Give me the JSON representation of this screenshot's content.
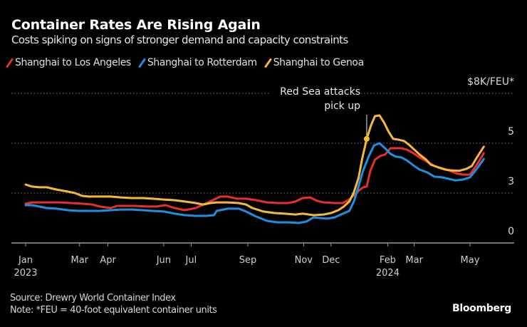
{
  "header": {
    "title": "Container Rates Are Rising Again",
    "subtitle": "Costs spiking on signs of stronger demand and capacity constraints"
  },
  "footer": {
    "source": "Source: Drewry World Container Index",
    "note": "Note: *FEU = 40-foot equivalent container units",
    "brand": "Bloomberg"
  },
  "chart_data": {
    "type": "line",
    "title": "Container Rates Are Rising Again",
    "subtitle": "Costs spiking on signs of stronger demand and capacity constraints",
    "xlabel": "",
    "ylabel": "$8K/FEU*",
    "x_unit": "days since 2023-01-01",
    "x_range": [
      0,
      530
    ],
    "y_ticks": [
      {
        "value": 0,
        "label": "0"
      },
      {
        "value": 3,
        "label": "3"
      },
      {
        "value": 5,
        "label": "5"
      },
      {
        "value": 8,
        "label": "$8K/FEU*"
      }
    ],
    "grid": true,
    "legend_position": "top-left",
    "x_ticks": [
      {
        "day": 0,
        "label": "Jan",
        "year": "2023"
      },
      {
        "day": 59,
        "label": "Mar",
        "year": ""
      },
      {
        "day": 90,
        "label": "Apr",
        "year": ""
      },
      {
        "day": 151,
        "label": "Jun",
        "year": ""
      },
      {
        "day": 181,
        "label": "Jul",
        "year": ""
      },
      {
        "day": 243,
        "label": "Sep",
        "year": ""
      },
      {
        "day": 304,
        "label": "Nov",
        "year": ""
      },
      {
        "day": 334,
        "label": "Dec",
        "year": ""
      },
      {
        "day": 396,
        "label": "Feb",
        "year": "2024"
      },
      {
        "day": 425,
        "label": "Mar",
        "year": ""
      },
      {
        "day": 486,
        "label": "May",
        "year": ""
      }
    ],
    "annotation": {
      "line1": "Red Sea attacks",
      "line2": "pick up",
      "day": 373,
      "series": "Shanghai to Genoa",
      "value": 5.26
    },
    "series": [
      {
        "name": "Shanghai to Los Angeles",
        "color": "#e8302a",
        "x": [
          0,
          7,
          15,
          26,
          38,
          50,
          62,
          73,
          81,
          93,
          100,
          108,
          120,
          132,
          143,
          153,
          163,
          174,
          186,
          198,
          206,
          213,
          221,
          231,
          241,
          252,
          264,
          276,
          287,
          295,
          303,
          311,
          319,
          326,
          338,
          347,
          354,
          359,
          364,
          369,
          373,
          377,
          382,
          388,
          393,
          399,
          405,
          411,
          417,
          424,
          431,
          439,
          447,
          455,
          463,
          470,
          478,
          486,
          494,
          501
        ],
        "values": [
          2.36,
          2.44,
          2.44,
          2.44,
          2.44,
          2.4,
          2.36,
          2.31,
          2.19,
          2.1,
          2.23,
          2.23,
          2.23,
          2.19,
          2.19,
          2.27,
          2.1,
          1.97,
          2.1,
          2.4,
          2.61,
          2.79,
          2.79,
          2.66,
          2.66,
          2.57,
          2.44,
          2.4,
          2.4,
          2.49,
          2.7,
          2.74,
          2.53,
          2.44,
          2.4,
          2.4,
          2.61,
          2.87,
          3.09,
          3.23,
          3.26,
          3.89,
          4.34,
          4.49,
          4.54,
          4.8,
          4.8,
          4.8,
          4.74,
          4.6,
          4.43,
          4.26,
          4.09,
          4.0,
          3.91,
          3.8,
          3.74,
          3.74,
          4.17,
          4.6
        ]
      },
      {
        "name": "Shanghai to Rotterdam",
        "color": "#1f8fe0",
        "x": [
          0,
          7,
          15,
          23,
          34,
          46,
          58,
          69,
          81,
          93,
          104,
          116,
          128,
          139,
          151,
          163,
          174,
          186,
          198,
          206,
          209,
          221,
          233,
          241,
          252,
          264,
          276,
          287,
          299,
          307,
          315,
          322,
          330,
          338,
          347,
          354,
          359,
          364,
          369,
          375,
          381,
          387,
          393,
          399,
          405,
          411,
          417,
          424,
          431,
          439,
          447,
          455,
          463,
          470,
          478,
          486,
          494,
          501
        ],
        "values": [
          2.27,
          2.27,
          2.19,
          2.1,
          2.06,
          1.97,
          1.93,
          1.93,
          1.93,
          1.97,
          2.01,
          2.01,
          1.97,
          1.93,
          1.89,
          1.76,
          1.67,
          1.63,
          1.63,
          1.67,
          1.93,
          2.06,
          2.06,
          1.89,
          1.59,
          1.33,
          1.24,
          1.24,
          1.2,
          1.29,
          1.54,
          1.5,
          1.46,
          1.54,
          1.76,
          1.93,
          2.49,
          3.26,
          3.89,
          4.46,
          4.91,
          5.0,
          4.8,
          4.57,
          4.46,
          4.43,
          4.31,
          4.11,
          3.94,
          3.83,
          3.66,
          3.63,
          3.57,
          3.51,
          3.54,
          3.63,
          4.0,
          4.37
        ]
      },
      {
        "name": "Shanghai to Genoa",
        "color": "#f5b93a",
        "x": [
          0,
          7,
          15,
          23,
          34,
          46,
          54,
          62,
          69,
          81,
          93,
          104,
          116,
          128,
          139,
          151,
          163,
          174,
          186,
          194,
          202,
          209,
          221,
          233,
          241,
          248,
          260,
          272,
          283,
          295,
          303,
          315,
          326,
          334,
          342,
          348,
          354,
          359,
          364,
          368,
          373,
          378,
          382,
          387,
          392,
          397,
          402,
          408,
          414,
          420,
          426,
          431,
          438,
          443,
          451,
          459,
          466,
          474,
          482,
          488,
          494,
          501
        ],
        "values": [
          3.34,
          3.26,
          3.23,
          3.23,
          3.14,
          3.06,
          3.0,
          2.83,
          2.79,
          2.79,
          2.79,
          2.74,
          2.7,
          2.7,
          2.66,
          2.61,
          2.57,
          2.49,
          2.4,
          2.31,
          2.4,
          2.44,
          2.44,
          2.4,
          2.31,
          2.1,
          1.89,
          1.8,
          1.76,
          1.71,
          1.76,
          1.67,
          1.71,
          1.8,
          1.97,
          2.19,
          2.49,
          3.03,
          3.6,
          4.37,
          5.26,
          6.11,
          6.63,
          6.67,
          6.24,
          5.69,
          5.26,
          5.21,
          5.13,
          4.91,
          4.71,
          4.54,
          4.34,
          4.14,
          4.03,
          3.94,
          3.91,
          3.89,
          3.97,
          4.09,
          4.46,
          4.86
        ]
      }
    ]
  }
}
